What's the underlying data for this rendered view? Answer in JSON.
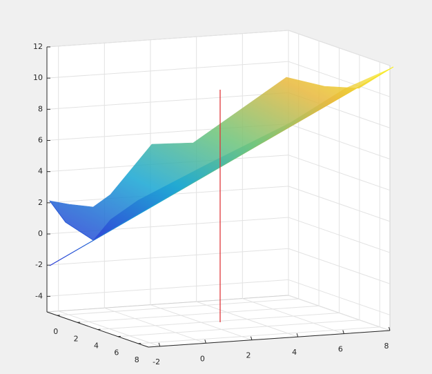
{
  "chart_data": {
    "type": "surface3d",
    "xlim": [
      -1,
      9
    ],
    "xticks": [
      0,
      2,
      4,
      6,
      8
    ],
    "ylim": [
      -2.5,
      8
    ],
    "yticks": [
      -2,
      0,
      2,
      4,
      6,
      8
    ],
    "zlim": [
      -5,
      12
    ],
    "zticks": [
      -4,
      -2,
      0,
      2,
      4,
      6,
      8,
      10,
      12
    ],
    "grid": true
  }
}
